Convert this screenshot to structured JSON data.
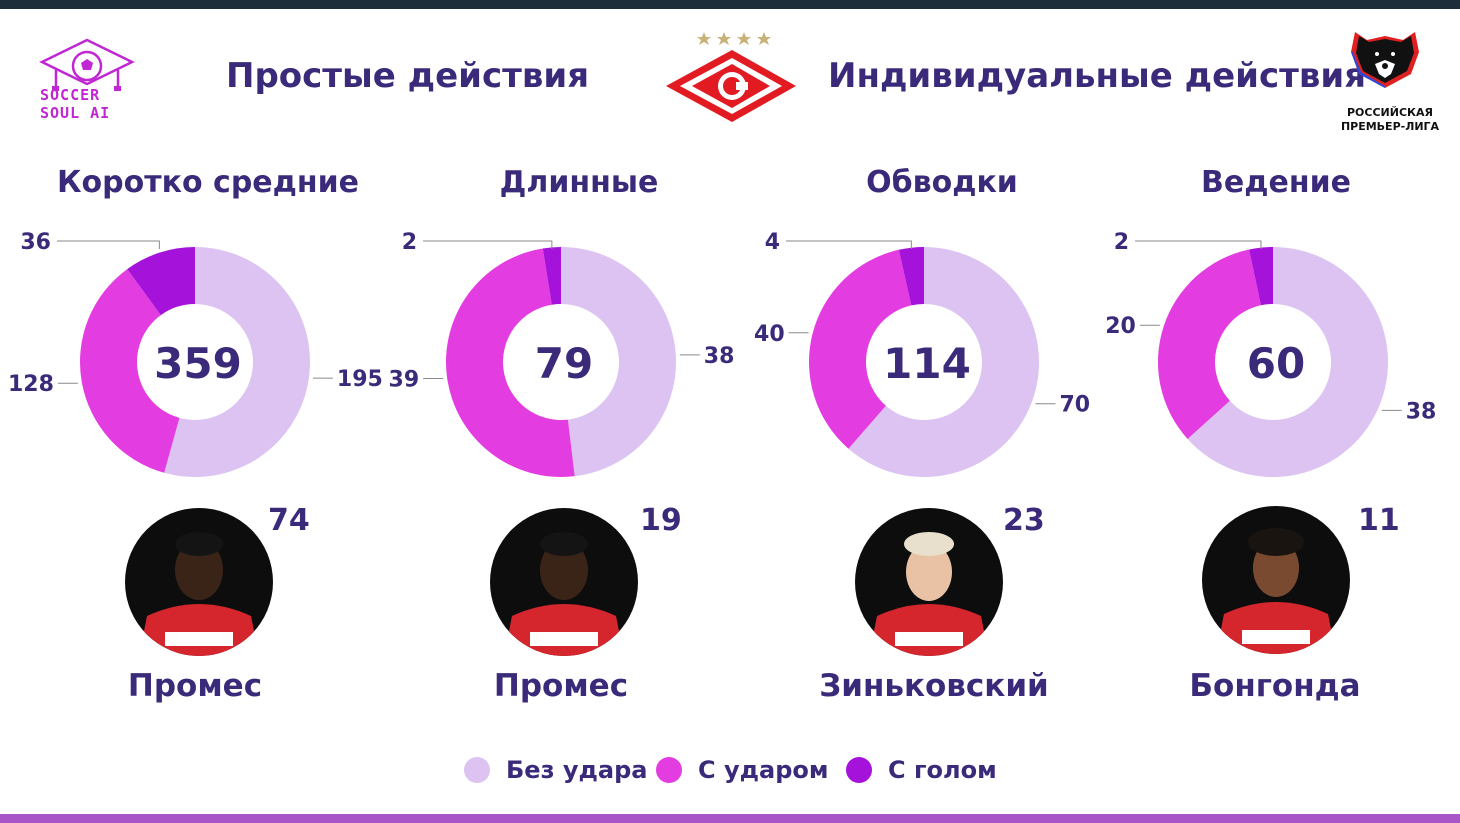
{
  "header": {
    "brand_lines": [
      "SOCCER",
      "SOUL AI"
    ],
    "left_title": "Простые действия",
    "right_title": "Индивидуальные действия",
    "league_lines": [
      "РОССИЙСКАЯ",
      "ПРЕМЬЕР-ЛИГА"
    ]
  },
  "colors": {
    "no_shot": "#dcc3f2",
    "with_shot": "#e33ce0",
    "with_goal": "#a512d9",
    "text": "#3b2a7a",
    "accent_bar": "#a855c8"
  },
  "legend": [
    {
      "label": "Без удара",
      "color": "#dcc3f2"
    },
    {
      "label": "С ударом",
      "color": "#e33ce0"
    },
    {
      "label": "С голом",
      "color": "#a512d9"
    }
  ],
  "chart_data": [
    {
      "type": "pie",
      "title": "Коротко средние",
      "total": "359",
      "labels": [
        "Без удара",
        "С ударом",
        "С голом"
      ],
      "values": [
        195,
        128,
        36
      ],
      "top_player": {
        "name": "Промес",
        "count": "74"
      }
    },
    {
      "type": "pie",
      "title": "Длинные",
      "total": "79",
      "labels": [
        "Без удара",
        "С ударом",
        "С голом"
      ],
      "values": [
        38,
        39,
        2
      ],
      "top_player": {
        "name": "Промес",
        "count": "19"
      }
    },
    {
      "type": "pie",
      "title": "Обводки",
      "total": "114",
      "labels": [
        "Без удара",
        "С ударом",
        "С голом"
      ],
      "values": [
        70,
        40,
        4
      ],
      "top_player": {
        "name": "Зиньковский",
        "count": "23"
      }
    },
    {
      "type": "pie",
      "title": "Ведение",
      "total": "60",
      "labels": [
        "Без удара",
        "С ударом",
        "С голом"
      ],
      "values": [
        38,
        20,
        2
      ],
      "top_player": {
        "name": "Бонгонда",
        "count": "11"
      }
    }
  ]
}
